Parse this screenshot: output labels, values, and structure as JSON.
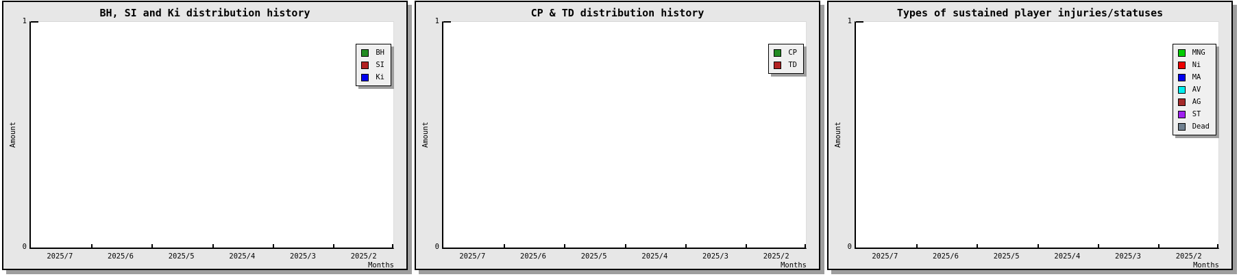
{
  "chart_data": [
    {
      "type": "line",
      "title": "BH, SI and Ki distribution history",
      "xlabel": "Months",
      "ylabel": "Amount",
      "ylim": [
        0,
        1
      ],
      "grid": false,
      "legend_position": "right",
      "categories": [
        "2025/7",
        "2025/6",
        "2025/5",
        "2025/4",
        "2025/3",
        "2025/2"
      ],
      "series": [
        {
          "name": "BH",
          "color": "#228B22",
          "values": []
        },
        {
          "name": "SI",
          "color": "#B22222",
          "values": []
        },
        {
          "name": "Ki",
          "color": "#0000EE",
          "values": []
        }
      ],
      "note": "plot area is empty - no data points drawn"
    },
    {
      "type": "line",
      "title": "CP & TD distribution history",
      "xlabel": "Months",
      "ylabel": "Amount",
      "ylim": [
        0,
        1
      ],
      "grid": false,
      "legend_position": "right",
      "categories": [
        "2025/7",
        "2025/6",
        "2025/5",
        "2025/4",
        "2025/3",
        "2025/2"
      ],
      "series": [
        {
          "name": "CP",
          "color": "#228B22",
          "values": []
        },
        {
          "name": "TD",
          "color": "#B22222",
          "values": []
        }
      ],
      "note": "plot area is empty - no data points drawn"
    },
    {
      "type": "line",
      "title": "Types of sustained player injuries/statuses",
      "xlabel": "Months",
      "ylabel": "Amount",
      "ylim": [
        0,
        1
      ],
      "grid": false,
      "legend_position": "right",
      "categories": [
        "2025/7",
        "2025/6",
        "2025/5",
        "2025/4",
        "2025/3",
        "2025/2"
      ],
      "series": [
        {
          "name": "MNG",
          "color": "#00CD00",
          "values": []
        },
        {
          "name": "Ni",
          "color": "#EE0000",
          "values": []
        },
        {
          "name": "MA",
          "color": "#0000EE",
          "values": []
        },
        {
          "name": "AV",
          "color": "#00EEEE",
          "values": []
        },
        {
          "name": "AG",
          "color": "#A52A2A",
          "values": []
        },
        {
          "name": "ST",
          "color": "#A020F0",
          "values": []
        },
        {
          "name": "Dead",
          "color": "#708090",
          "values": []
        }
      ],
      "note": "plot area is empty - no data points drawn"
    }
  ],
  "colors": {
    "panel_background": "#E7E7E7",
    "plot_background": "#FFFFFF",
    "panel_border": "#000000",
    "drop_shadow": "#9E9E9E",
    "legend_background": "#F0F0F0"
  }
}
